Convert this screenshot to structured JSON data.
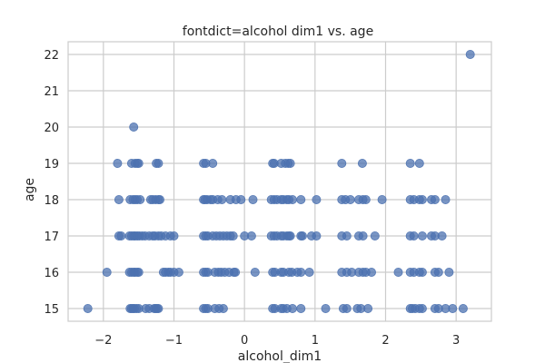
{
  "chart_data": {
    "type": "scatter",
    "title": "fontdict=alcohol dim1 vs. age",
    "xlabel": "alcohol_dim1",
    "ylabel": "age",
    "xlim": [
      -2.5,
      3.5
    ],
    "ylim": [
      14.65,
      22.35
    ],
    "xticks": [
      -2,
      -1,
      0,
      1,
      2,
      3
    ],
    "yticks": [
      15,
      16,
      17,
      18,
      19,
      20,
      21,
      22
    ],
    "grid": true,
    "legend": false,
    "color": "#4c72b0",
    "series": [
      {
        "points": [
          [
            -2.22,
            15
          ],
          [
            -1.95,
            16
          ],
          [
            -1.8,
            19
          ],
          [
            -1.78,
            18
          ],
          [
            -1.78,
            17
          ],
          [
            -1.75,
            17
          ],
          [
            -1.62,
            15
          ],
          [
            -1.6,
            15
          ],
          [
            -1.58,
            15
          ],
          [
            -1.56,
            15
          ],
          [
            -1.53,
            15
          ],
          [
            -1.5,
            15
          ],
          [
            -1.4,
            15
          ],
          [
            -1.35,
            15
          ],
          [
            -1.28,
            15
          ],
          [
            -1.26,
            15
          ],
          [
            -1.24,
            15
          ],
          [
            -1.22,
            15
          ],
          [
            -1.63,
            16
          ],
          [
            -1.6,
            16
          ],
          [
            -1.57,
            16
          ],
          [
            -1.55,
            16
          ],
          [
            -1.52,
            16
          ],
          [
            -1.5,
            16
          ],
          [
            -1.15,
            16
          ],
          [
            -1.12,
            16
          ],
          [
            -1.08,
            16
          ],
          [
            -1.05,
            16
          ],
          [
            -1.0,
            16
          ],
          [
            -0.93,
            16
          ],
          [
            -1.63,
            17
          ],
          [
            -1.6,
            17
          ],
          [
            -1.57,
            17
          ],
          [
            -1.55,
            17
          ],
          [
            -1.52,
            17
          ],
          [
            -1.49,
            17
          ],
          [
            -1.45,
            17
          ],
          [
            -1.41,
            17
          ],
          [
            -1.35,
            17
          ],
          [
            -1.3,
            17
          ],
          [
            -1.27,
            17
          ],
          [
            -1.22,
            17
          ],
          [
            -1.18,
            17
          ],
          [
            -1.12,
            17
          ],
          [
            -1.05,
            17
          ],
          [
            -1.0,
            17
          ],
          [
            -1.62,
            18
          ],
          [
            -1.58,
            18
          ],
          [
            -1.55,
            18
          ],
          [
            -1.52,
            18
          ],
          [
            -1.48,
            18
          ],
          [
            -1.33,
            18
          ],
          [
            -1.3,
            18
          ],
          [
            -1.26,
            18
          ],
          [
            -1.22,
            18
          ],
          [
            -1.2,
            18
          ],
          [
            -1.6,
            19
          ],
          [
            -1.55,
            19
          ],
          [
            -1.52,
            19
          ],
          [
            -1.5,
            19
          ],
          [
            -1.25,
            19
          ],
          [
            -1.22,
            19
          ],
          [
            -1.57,
            20
          ],
          [
            -0.58,
            15
          ],
          [
            -0.55,
            15
          ],
          [
            -0.52,
            15
          ],
          [
            -0.42,
            15
          ],
          [
            -0.36,
            15
          ],
          [
            -0.3,
            15
          ],
          [
            -0.58,
            16
          ],
          [
            -0.55,
            16
          ],
          [
            -0.52,
            16
          ],
          [
            -0.42,
            16
          ],
          [
            -0.37,
            16
          ],
          [
            -0.33,
            16
          ],
          [
            -0.28,
            16
          ],
          [
            -0.22,
            16
          ],
          [
            -0.15,
            16
          ],
          [
            -0.13,
            16
          ],
          [
            -0.58,
            17
          ],
          [
            -0.55,
            17
          ],
          [
            -0.52,
            17
          ],
          [
            -0.45,
            17
          ],
          [
            -0.4,
            17
          ],
          [
            -0.35,
            17
          ],
          [
            -0.3,
            17
          ],
          [
            -0.25,
            17
          ],
          [
            -0.2,
            17
          ],
          [
            -0.16,
            17
          ],
          [
            -0.58,
            18
          ],
          [
            -0.56,
            18
          ],
          [
            -0.53,
            18
          ],
          [
            -0.48,
            18
          ],
          [
            -0.45,
            18
          ],
          [
            -0.38,
            18
          ],
          [
            -0.32,
            18
          ],
          [
            -0.2,
            18
          ],
          [
            -0.12,
            18
          ],
          [
            -0.05,
            18
          ],
          [
            -0.58,
            19
          ],
          [
            -0.55,
            19
          ],
          [
            -0.45,
            19
          ],
          [
            0.0,
            17
          ],
          [
            0.1,
            17
          ],
          [
            0.12,
            18
          ],
          [
            0.15,
            16
          ],
          [
            0.4,
            15
          ],
          [
            0.43,
            15
          ],
          [
            0.52,
            15
          ],
          [
            0.55,
            15
          ],
          [
            0.6,
            15
          ],
          [
            0.68,
            15
          ],
          [
            0.8,
            15
          ],
          [
            0.4,
            16
          ],
          [
            0.43,
            16
          ],
          [
            0.52,
            16
          ],
          [
            0.55,
            16
          ],
          [
            0.63,
            16
          ],
          [
            0.67,
            16
          ],
          [
            0.75,
            16
          ],
          [
            0.8,
            16
          ],
          [
            0.92,
            16
          ],
          [
            0.38,
            17
          ],
          [
            0.42,
            17
          ],
          [
            0.46,
            17
          ],
          [
            0.52,
            17
          ],
          [
            0.55,
            17
          ],
          [
            0.6,
            17
          ],
          [
            0.63,
            17
          ],
          [
            0.65,
            17
          ],
          [
            0.8,
            17
          ],
          [
            0.82,
            17
          ],
          [
            0.95,
            17
          ],
          [
            1.02,
            17
          ],
          [
            0.38,
            18
          ],
          [
            0.42,
            18
          ],
          [
            0.46,
            18
          ],
          [
            0.52,
            18
          ],
          [
            0.55,
            18
          ],
          [
            0.6,
            18
          ],
          [
            0.63,
            18
          ],
          [
            0.68,
            18
          ],
          [
            0.8,
            18
          ],
          [
            1.02,
            18
          ],
          [
            0.4,
            19
          ],
          [
            0.42,
            19
          ],
          [
            0.52,
            19
          ],
          [
            0.58,
            19
          ],
          [
            0.62,
            19
          ],
          [
            0.65,
            19
          ],
          [
            1.15,
            15
          ],
          [
            1.4,
            15
          ],
          [
            1.45,
            15
          ],
          [
            1.6,
            15
          ],
          [
            1.65,
            15
          ],
          [
            1.75,
            15
          ],
          [
            1.38,
            16
          ],
          [
            1.45,
            16
          ],
          [
            1.52,
            16
          ],
          [
            1.62,
            16
          ],
          [
            1.68,
            16
          ],
          [
            1.72,
            16
          ],
          [
            1.8,
            16
          ],
          [
            1.38,
            17
          ],
          [
            1.45,
            17
          ],
          [
            1.62,
            17
          ],
          [
            1.68,
            17
          ],
          [
            1.85,
            17
          ],
          [
            1.38,
            18
          ],
          [
            1.43,
            18
          ],
          [
            1.5,
            18
          ],
          [
            1.62,
            18
          ],
          [
            1.68,
            18
          ],
          [
            1.72,
            18
          ],
          [
            1.95,
            18
          ],
          [
            1.38,
            19
          ],
          [
            1.67,
            19
          ],
          [
            2.18,
            16
          ],
          [
            2.35,
            15
          ],
          [
            2.38,
            15
          ],
          [
            2.42,
            15
          ],
          [
            2.48,
            15
          ],
          [
            2.52,
            15
          ],
          [
            2.7,
            15
          ],
          [
            2.75,
            15
          ],
          [
            2.85,
            15
          ],
          [
            2.95,
            15
          ],
          [
            3.1,
            15
          ],
          [
            2.35,
            16
          ],
          [
            2.4,
            16
          ],
          [
            2.48,
            16
          ],
          [
            2.52,
            16
          ],
          [
            2.7,
            16
          ],
          [
            2.75,
            16
          ],
          [
            2.9,
            16
          ],
          [
            2.35,
            17
          ],
          [
            2.4,
            17
          ],
          [
            2.52,
            17
          ],
          [
            2.65,
            17
          ],
          [
            2.7,
            17
          ],
          [
            2.8,
            17
          ],
          [
            2.35,
            18
          ],
          [
            2.4,
            18
          ],
          [
            2.48,
            18
          ],
          [
            2.52,
            18
          ],
          [
            2.65,
            18
          ],
          [
            2.7,
            18
          ],
          [
            2.85,
            18
          ],
          [
            2.35,
            19
          ],
          [
            2.48,
            19
          ],
          [
            3.2,
            22
          ]
        ]
      }
    ]
  }
}
